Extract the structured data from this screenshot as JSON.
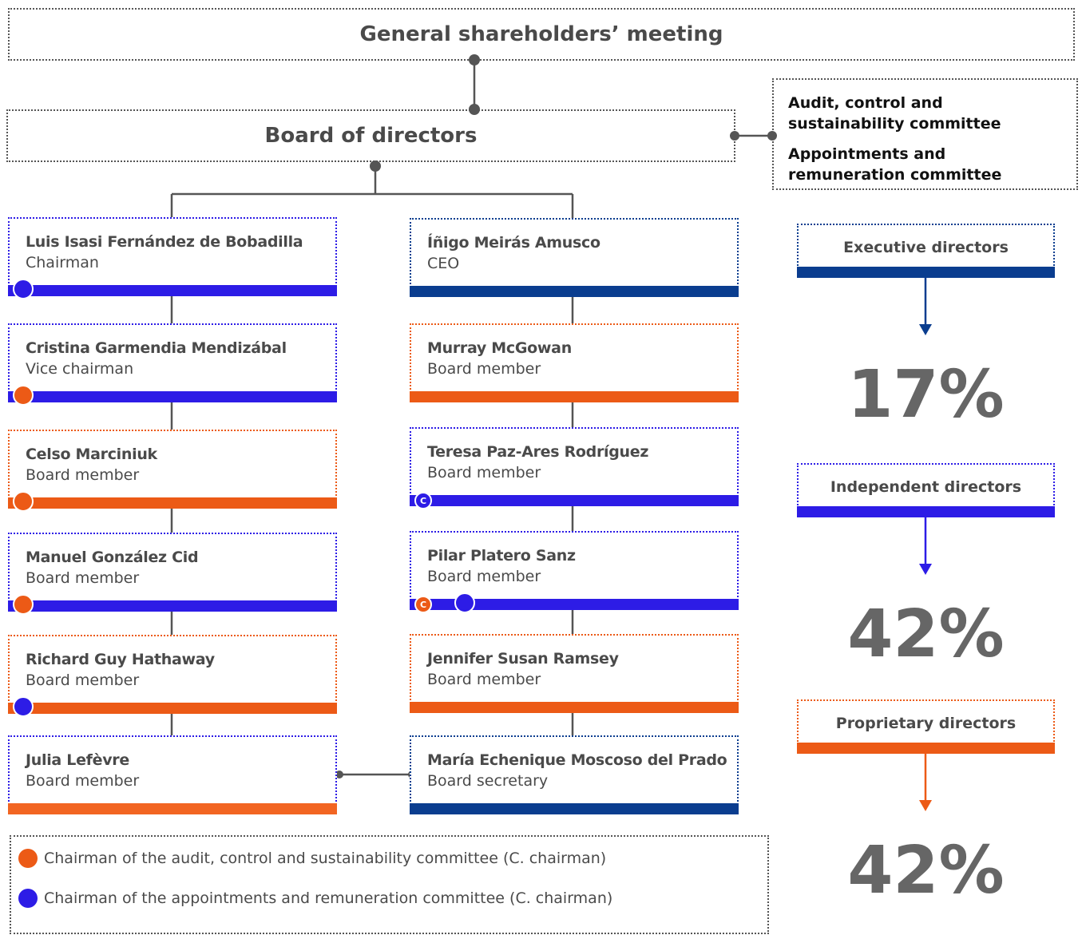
{
  "header": {
    "title": "General shareholders’ meeting"
  },
  "board": {
    "title": "Board of directors"
  },
  "committees": [
    "Audit, control and sustainability committee",
    "Appointments and remuneration committee"
  ],
  "directors": [
    {
      "name": "Luis Isasi Fernández de Bobadilla",
      "role": "Chairman"
    },
    {
      "name": "Cristina Garmendia Mendizábal",
      "role": "Vice chairman"
    },
    {
      "name": "Celso Marciniuk",
      "role": "Board member"
    },
    {
      "name": "Manuel González Cid",
      "role": "Board member"
    },
    {
      "name": "Richard Guy Hathaway",
      "role": "Board member"
    },
    {
      "name": "Julia Lefèvre",
      "role": "Board member"
    },
    {
      "name": "Íñigo Meirás Amusco",
      "role": "CEO"
    },
    {
      "name": "Murray McGowan",
      "role": "Board member"
    },
    {
      "name": "Teresa Paz-Ares Rodríguez",
      "role": "Board member",
      "badge": "C"
    },
    {
      "name": "Pilar Platero Sanz",
      "role": "Board member",
      "badge": "C"
    },
    {
      "name": "Jennifer Susan Ramsey",
      "role": "Board member"
    },
    {
      "name": "María Echenique Moscoso del Prado",
      "role": "Board secretary"
    }
  ],
  "summary": [
    {
      "label": "Executive directors",
      "share": "17%"
    },
    {
      "label": "Independent directors",
      "share": "42%"
    },
    {
      "label": "Proprietary directors",
      "share": "42%"
    }
  ],
  "legend": [
    "Chairman of the audit, control and sustainability committee (C. chairman)",
    "Chairman of the appointments and remuneration committee (C. chairman)"
  ]
}
